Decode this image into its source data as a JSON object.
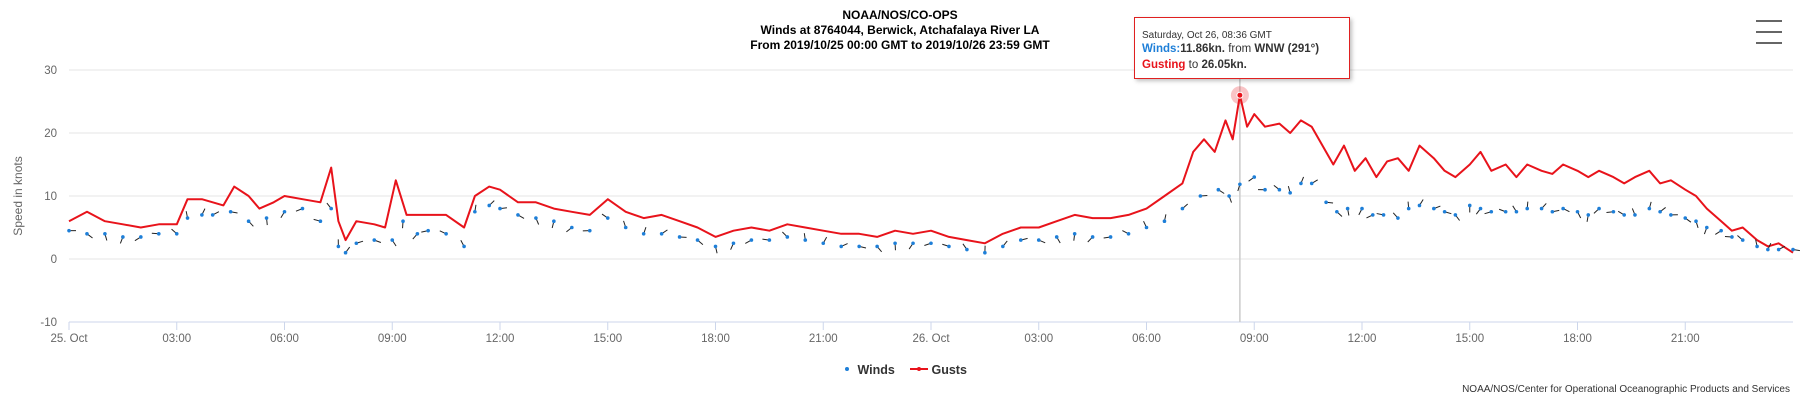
{
  "header": {
    "line1": "NOAA/NOS/CO-OPS",
    "line2": "Winds at 8764044, Berwick, Atchafalaya River LA",
    "line3": "From 2019/10/25 00:00 GMT to 2019/10/26 23:59 GMT"
  },
  "footer": {
    "credit": "NOAA/NOS/Center for Operational Oceanographic Products and Services"
  },
  "tooltip": {
    "date": "Saturday, Oct 26, 08:36 GMT",
    "winds_label": "Winds:",
    "winds_value": "11.86kn.",
    "from_text": "from",
    "direction": "WNW (291°)",
    "gusting_label": "Gusting",
    "to_text": "to",
    "gust_value": "26.05kn."
  },
  "colors": {
    "winds": "#1e7fd8",
    "gusts": "#e8131b",
    "grid": "#e6e6e6",
    "arrow": "#222222"
  },
  "chart_data": {
    "type": "line",
    "ylabel": "Speed in knots",
    "ylim": [
      -10,
      30
    ],
    "yticks": [
      -10,
      0,
      10,
      20,
      30
    ],
    "xlim": [
      0,
      48
    ],
    "xticks": [
      {
        "x": 0,
        "label": "25. Oct"
      },
      {
        "x": 3,
        "label": "03:00"
      },
      {
        "x": 6,
        "label": "06:00"
      },
      {
        "x": 9,
        "label": "09:00"
      },
      {
        "x": 12,
        "label": "12:00"
      },
      {
        "x": 15,
        "label": "15:00"
      },
      {
        "x": 18,
        "label": "18:00"
      },
      {
        "x": 21,
        "label": "21:00"
      },
      {
        "x": 24,
        "label": "26. Oct"
      },
      {
        "x": 27,
        "label": "03:00"
      },
      {
        "x": 30,
        "label": "06:00"
      },
      {
        "x": 33,
        "label": "09:00"
      },
      {
        "x": 36,
        "label": "12:00"
      },
      {
        "x": 39,
        "label": "15:00"
      },
      {
        "x": 42,
        "label": "18:00"
      },
      {
        "x": 45,
        "label": "21:00"
      }
    ],
    "legend": [
      "Winds",
      "Gusts"
    ],
    "legend_position": "bottom-center",
    "grid": true,
    "highlight_x": 32.6,
    "series": [
      {
        "name": "Gusts",
        "points": [
          [
            0,
            6
          ],
          [
            0.5,
            7.5
          ],
          [
            1,
            6
          ],
          [
            1.5,
            5.5
          ],
          [
            2,
            5
          ],
          [
            2.5,
            5.5
          ],
          [
            3,
            5.5
          ],
          [
            3.3,
            9.5
          ],
          [
            3.7,
            9.5
          ],
          [
            4,
            9
          ],
          [
            4.3,
            8.5
          ],
          [
            4.6,
            11.5
          ],
          [
            5,
            10
          ],
          [
            5.3,
            8
          ],
          [
            5.7,
            9
          ],
          [
            6,
            10
          ],
          [
            6.5,
            9.5
          ],
          [
            7,
            9
          ],
          [
            7.3,
            14.5
          ],
          [
            7.5,
            6
          ],
          [
            7.7,
            3
          ],
          [
            8,
            6
          ],
          [
            8.5,
            5.5
          ],
          [
            8.8,
            5
          ],
          [
            9.1,
            12.5
          ],
          [
            9.4,
            7
          ],
          [
            10,
            7
          ],
          [
            10.5,
            7
          ],
          [
            11,
            5
          ],
          [
            11.3,
            10
          ],
          [
            11.7,
            11.5
          ],
          [
            12,
            11
          ],
          [
            12.5,
            9
          ],
          [
            13,
            9
          ],
          [
            13.5,
            8
          ],
          [
            14,
            7.5
          ],
          [
            14.5,
            7
          ],
          [
            15,
            9.5
          ],
          [
            15.5,
            7.5
          ],
          [
            16,
            6.5
          ],
          [
            16.5,
            7
          ],
          [
            17,
            6
          ],
          [
            17.5,
            5
          ],
          [
            18,
            3.5
          ],
          [
            18.5,
            4.5
          ],
          [
            19,
            5
          ],
          [
            19.5,
            4.5
          ],
          [
            20,
            5.5
          ],
          [
            20.5,
            5
          ],
          [
            21,
            4.5
          ],
          [
            21.5,
            4
          ],
          [
            22,
            4
          ],
          [
            22.5,
            3.5
          ],
          [
            23,
            4.5
          ],
          [
            23.5,
            4
          ],
          [
            24,
            4.5
          ],
          [
            24.5,
            3.5
          ],
          [
            25,
            3
          ],
          [
            25.5,
            2.5
          ],
          [
            26,
            4
          ],
          [
            26.5,
            5
          ],
          [
            27,
            5
          ],
          [
            27.5,
            6
          ],
          [
            28,
            7
          ],
          [
            28.5,
            6.5
          ],
          [
            29,
            6.5
          ],
          [
            29.5,
            7
          ],
          [
            30,
            8
          ],
          [
            30.5,
            10
          ],
          [
            31,
            12
          ],
          [
            31.3,
            17
          ],
          [
            31.6,
            19
          ],
          [
            31.9,
            17
          ],
          [
            32.2,
            22
          ],
          [
            32.4,
            19
          ],
          [
            32.6,
            26
          ],
          [
            32.8,
            21
          ],
          [
            33,
            23
          ],
          [
            33.3,
            21
          ],
          [
            33.7,
            21.5
          ],
          [
            34,
            20
          ],
          [
            34.3,
            22
          ],
          [
            34.6,
            21
          ],
          [
            34.9,
            18
          ],
          [
            35.2,
            15
          ],
          [
            35.5,
            18
          ],
          [
            35.8,
            14
          ],
          [
            36.1,
            16
          ],
          [
            36.4,
            13
          ],
          [
            36.7,
            15.5
          ],
          [
            37,
            16
          ],
          [
            37.3,
            14
          ],
          [
            37.6,
            18
          ],
          [
            38,
            16
          ],
          [
            38.3,
            14
          ],
          [
            38.6,
            13
          ],
          [
            39,
            15
          ],
          [
            39.3,
            17
          ],
          [
            39.6,
            14
          ],
          [
            40,
            15
          ],
          [
            40.3,
            13
          ],
          [
            40.6,
            15
          ],
          [
            41,
            14
          ],
          [
            41.3,
            13.5
          ],
          [
            41.6,
            15
          ],
          [
            42,
            14
          ],
          [
            42.3,
            13
          ],
          [
            42.6,
            14
          ],
          [
            43,
            13
          ],
          [
            43.3,
            12
          ],
          [
            43.6,
            13
          ],
          [
            44,
            14
          ],
          [
            44.3,
            12
          ],
          [
            44.6,
            12.5
          ],
          [
            45,
            11
          ],
          [
            45.3,
            10
          ],
          [
            45.6,
            8
          ],
          [
            46,
            6
          ],
          [
            46.3,
            4.5
          ],
          [
            46.6,
            5
          ],
          [
            47,
            3
          ],
          [
            47.3,
            2
          ],
          [
            47.6,
            2.5
          ],
          [
            48,
            1
          ]
        ]
      },
      {
        "name": "Winds",
        "points": [
          [
            0,
            4.5
          ],
          [
            0.5,
            4
          ],
          [
            1,
            4
          ],
          [
            1.5,
            3.5
          ],
          [
            2,
            3.5
          ],
          [
            2.5,
            4
          ],
          [
            3,
            4
          ],
          [
            3.3,
            6.5
          ],
          [
            3.7,
            7
          ],
          [
            4,
            7
          ],
          [
            4.5,
            7.5
          ],
          [
            5,
            6
          ],
          [
            5.5,
            6.5
          ],
          [
            6,
            7.5
          ],
          [
            6.5,
            8
          ],
          [
            7,
            6
          ],
          [
            7.3,
            8
          ],
          [
            7.5,
            2
          ],
          [
            7.7,
            1
          ],
          [
            8,
            2.5
          ],
          [
            8.5,
            3
          ],
          [
            9,
            3
          ],
          [
            9.3,
            6
          ],
          [
            9.7,
            4
          ],
          [
            10,
            4.5
          ],
          [
            10.5,
            4
          ],
          [
            11,
            2
          ],
          [
            11.3,
            7.5
          ],
          [
            11.7,
            8.5
          ],
          [
            12,
            8
          ],
          [
            12.5,
            7
          ],
          [
            13,
            6.5
          ],
          [
            13.5,
            6
          ],
          [
            14,
            5
          ],
          [
            14.5,
            4.5
          ],
          [
            15,
            6.5
          ],
          [
            15.5,
            5
          ],
          [
            16,
            4
          ],
          [
            16.5,
            4
          ],
          [
            17,
            3.5
          ],
          [
            17.5,
            3
          ],
          [
            18,
            2
          ],
          [
            18.5,
            2.5
          ],
          [
            19,
            3
          ],
          [
            19.5,
            3
          ],
          [
            20,
            3.5
          ],
          [
            20.5,
            3
          ],
          [
            21,
            2.5
          ],
          [
            21.5,
            2
          ],
          [
            22,
            2
          ],
          [
            22.5,
            2
          ],
          [
            23,
            2.5
          ],
          [
            23.5,
            2.5
          ],
          [
            24,
            2.5
          ],
          [
            24.5,
            2
          ],
          [
            25,
            1.5
          ],
          [
            25.5,
            1
          ],
          [
            26,
            2
          ],
          [
            26.5,
            3
          ],
          [
            27,
            3
          ],
          [
            27.5,
            3.5
          ],
          [
            28,
            4
          ],
          [
            28.5,
            3.5
          ],
          [
            29,
            3.5
          ],
          [
            29.5,
            4
          ],
          [
            30,
            5
          ],
          [
            30.5,
            6
          ],
          [
            31,
            8
          ],
          [
            31.5,
            10
          ],
          [
            32,
            11
          ],
          [
            32.3,
            10
          ],
          [
            32.6,
            11.86
          ],
          [
            33,
            13
          ],
          [
            33.3,
            11
          ],
          [
            33.7,
            11
          ],
          [
            34,
            10.5
          ],
          [
            34.3,
            12
          ],
          [
            34.6,
            12
          ],
          [
            35,
            9
          ],
          [
            35.3,
            7.5
          ],
          [
            35.6,
            8
          ],
          [
            36,
            8
          ],
          [
            36.3,
            7
          ],
          [
            36.6,
            7
          ],
          [
            37,
            6.5
          ],
          [
            37.3,
            8
          ],
          [
            37.6,
            8.5
          ],
          [
            38,
            8
          ],
          [
            38.3,
            7.5
          ],
          [
            38.6,
            7
          ],
          [
            39,
            8.5
          ],
          [
            39.3,
            8
          ],
          [
            39.6,
            7.5
          ],
          [
            40,
            7.5
          ],
          [
            40.3,
            7.5
          ],
          [
            40.6,
            8
          ],
          [
            41,
            8
          ],
          [
            41.3,
            7.5
          ],
          [
            41.6,
            8
          ],
          [
            42,
            7.5
          ],
          [
            42.3,
            7
          ],
          [
            42.6,
            8
          ],
          [
            43,
            7.5
          ],
          [
            43.3,
            7
          ],
          [
            43.6,
            7
          ],
          [
            44,
            8
          ],
          [
            44.3,
            7.5
          ],
          [
            44.6,
            7
          ],
          [
            45,
            6.5
          ],
          [
            45.3,
            6
          ],
          [
            45.6,
            5
          ],
          [
            46,
            4.5
          ],
          [
            46.3,
            3.5
          ],
          [
            46.6,
            3
          ],
          [
            47,
            2
          ],
          [
            47.3,
            1.5
          ],
          [
            47.6,
            1.5
          ],
          [
            48,
            1.5
          ]
        ]
      }
    ]
  }
}
